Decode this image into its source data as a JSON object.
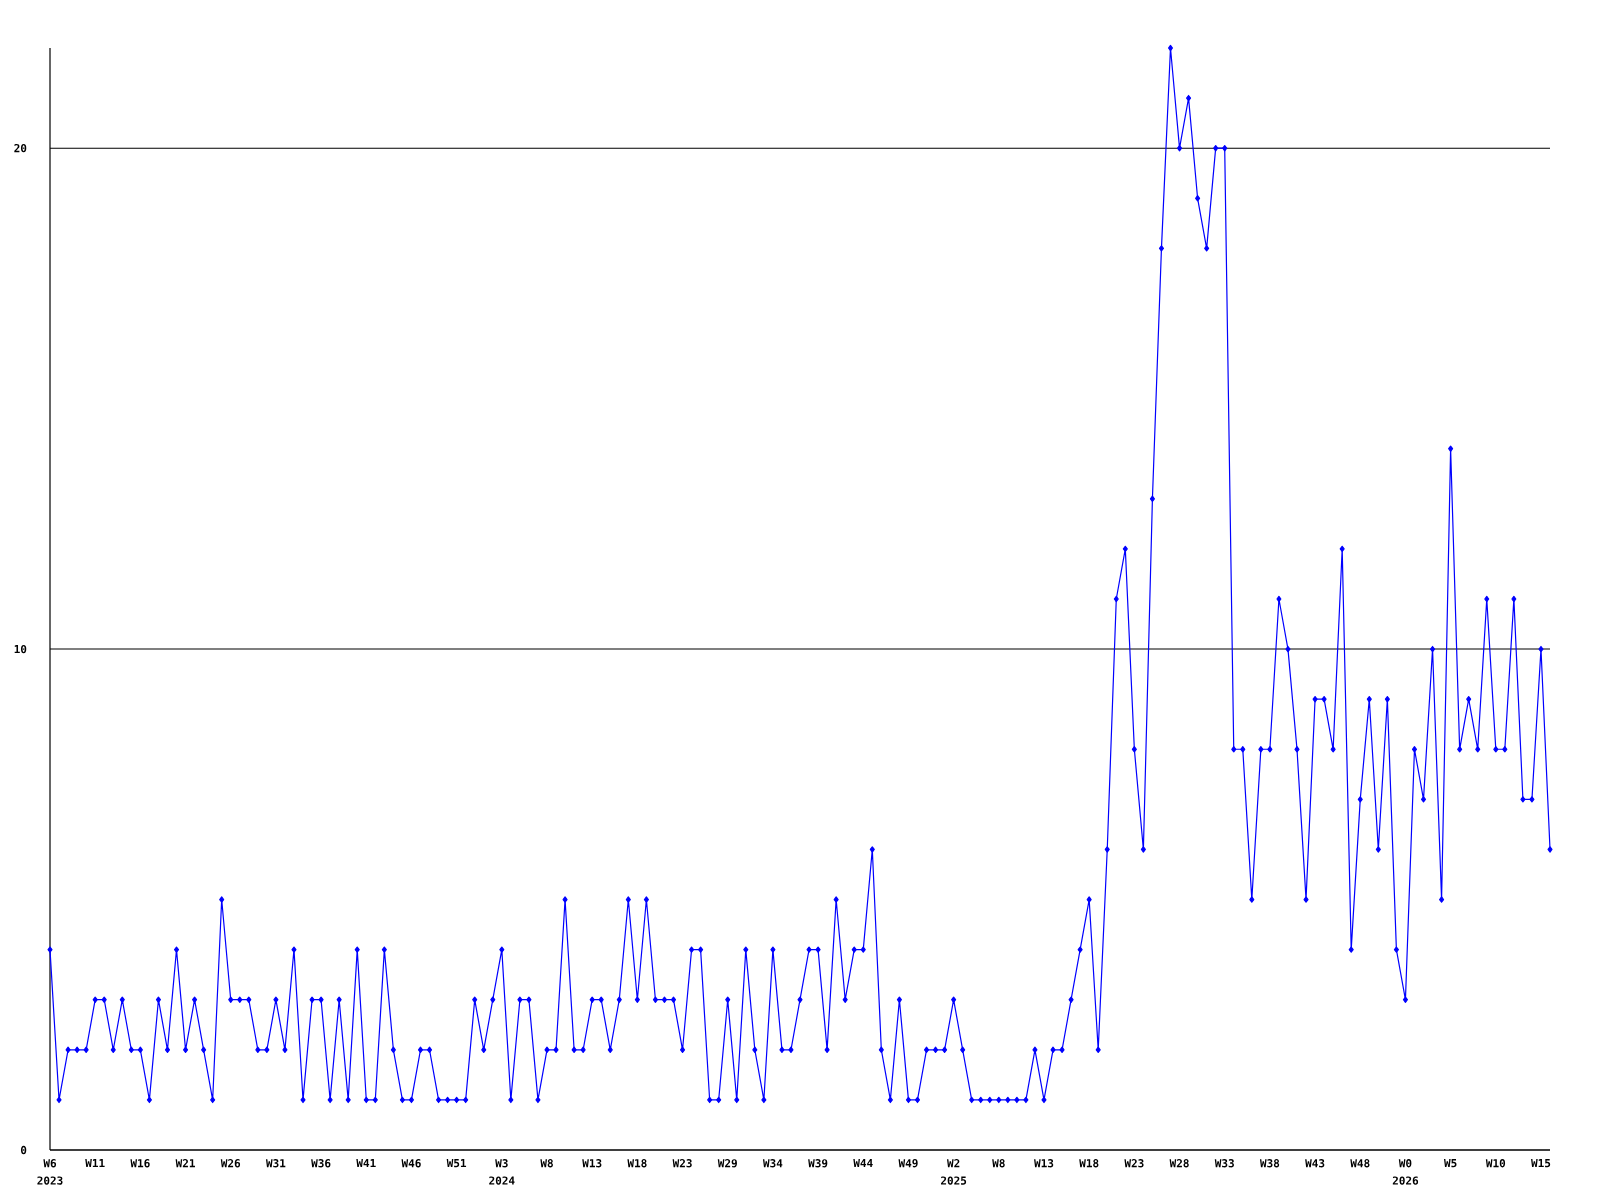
{
  "chart_data": {
    "type": "line",
    "color": "#0000ff",
    "marker": "diamond",
    "grid": "y",
    "ylim": [
      0,
      22
    ],
    "yticks": [
      0,
      10,
      20
    ],
    "categories": [
      "W6",
      null,
      null,
      null,
      null,
      "W11",
      null,
      null,
      null,
      null,
      "W16",
      null,
      null,
      null,
      null,
      "W21",
      null,
      null,
      null,
      null,
      "W26",
      null,
      null,
      null,
      null,
      "W31",
      null,
      null,
      null,
      null,
      "W36",
      null,
      null,
      null,
      null,
      "W41",
      null,
      null,
      null,
      null,
      "W46",
      null,
      null,
      null,
      null,
      "W51",
      null,
      null,
      null,
      null,
      "W3",
      null,
      null,
      null,
      null,
      "W8",
      null,
      null,
      null,
      null,
      "W13",
      null,
      null,
      null,
      null,
      "W18",
      null,
      null,
      null,
      null,
      "W23",
      null,
      null,
      null,
      null,
      "W29",
      null,
      null,
      null,
      null,
      "W34",
      null,
      null,
      null,
      null,
      "W39",
      null,
      null,
      null,
      null,
      "W44",
      null,
      null,
      null,
      null,
      "W49",
      null,
      null,
      null,
      null,
      "W2",
      null,
      null,
      null,
      null,
      "W8",
      null,
      null,
      null,
      null,
      "W13",
      null,
      null,
      null,
      null,
      "W18",
      null,
      null,
      null,
      null,
      "W23",
      null,
      null,
      null,
      null,
      "W28",
      null,
      null,
      null,
      null,
      "W33",
      null,
      null,
      null,
      null,
      "W38",
      null,
      null,
      null,
      null,
      "W43",
      null,
      null,
      null,
      null,
      "W48",
      null,
      null,
      null,
      null,
      "W0",
      null,
      null,
      null,
      null,
      "W5",
      null,
      null,
      null,
      null,
      "W10",
      null,
      null,
      null,
      null,
      "W15",
      null
    ],
    "values": [
      4,
      1,
      2,
      2,
      2,
      3,
      3,
      2,
      3,
      2,
      2,
      1,
      3,
      2,
      4,
      2,
      3,
      2,
      1,
      5,
      3,
      3,
      3,
      2,
      2,
      3,
      2,
      4,
      1,
      3,
      3,
      1,
      3,
      1,
      4,
      1,
      1,
      4,
      2,
      1,
      1,
      2,
      2,
      1,
      1,
      1,
      1,
      3,
      2,
      3,
      4,
      1,
      3,
      3,
      1,
      2,
      2,
      5,
      2,
      2,
      3,
      3,
      2,
      3,
      5,
      3,
      5,
      3,
      3,
      3,
      2,
      4,
      4,
      1,
      1,
      3,
      1,
      4,
      2,
      1,
      4,
      2,
      2,
      3,
      4,
      4,
      2,
      5,
      3,
      4,
      4,
      6,
      2,
      1,
      3,
      1,
      1,
      2,
      2,
      2,
      3,
      2,
      1,
      1,
      1,
      1,
      1,
      1,
      1,
      2,
      1,
      2,
      2,
      3,
      4,
      5,
      2,
      6,
      11,
      12,
      8,
      6,
      13,
      18,
      22,
      20,
      21,
      19,
      18,
      20,
      20,
      8,
      8,
      5,
      8,
      8,
      11,
      10,
      8,
      5,
      9,
      9,
      8,
      12,
      4,
      7,
      9,
      6,
      9,
      4,
      3,
      8,
      7,
      10,
      5,
      14,
      8,
      9,
      8,
      11,
      8,
      8,
      11,
      7,
      7,
      10,
      6
    ],
    "annotations": [
      "2023",
      "2024",
      "2025",
      "2026"
    ]
  }
}
